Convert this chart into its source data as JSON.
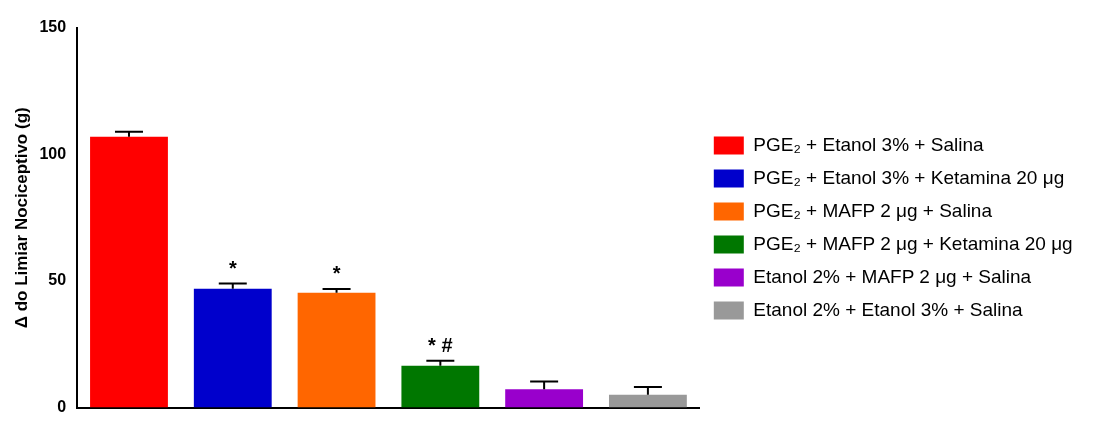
{
  "chart_data": {
    "type": "bar",
    "ylabel": "Δ do Limiar Nociceptivo (g)",
    "categories": [
      null,
      null,
      null,
      null,
      null,
      null
    ],
    "ylim": [
      0,
      150
    ],
    "yticks": [
      0,
      50,
      100,
      150
    ],
    "grid": false,
    "legend": "right",
    "series": [
      {
        "name": "PGE₂ + Etanol 3% + Salina",
        "color": "#ff0000",
        "values": [
          107,
          null,
          null,
          null,
          null,
          null
        ],
        "errors": [
          2,
          null,
          null,
          null,
          null,
          null
        ]
      },
      {
        "name": "PGE₂ + Etanol 3% + Ketamina 20 μg",
        "color": "#0000cc",
        "values": [
          null,
          47,
          null,
          null,
          null,
          null
        ],
        "errors": [
          null,
          2,
          null,
          null,
          null,
          null
        ],
        "value_labels": [
          null,
          "*",
          null,
          null,
          null,
          null
        ]
      },
      {
        "name": "PGE₂ + MAFP 2 μg + Salina",
        "color": "#ff6600",
        "values": [
          null,
          null,
          45.4,
          null,
          null,
          null
        ],
        "errors": [
          null,
          null,
          1.5,
          null,
          null,
          null
        ],
        "value_labels": [
          null,
          null,
          "*",
          null,
          null,
          null
        ]
      },
      {
        "name": "PGE₂ + MAFP 2 μg + Ketamina 20 μg",
        "color": "#007700",
        "values": [
          null,
          null,
          null,
          16.5,
          null,
          null
        ],
        "errors": [
          null,
          null,
          null,
          2,
          null,
          null
        ],
        "value_labels": [
          null,
          null,
          null,
          "* #",
          null,
          null
        ]
      },
      {
        "name": "Etanol 2% + MAFP 2 μg + Salina",
        "color": "#9900cc",
        "values": [
          null,
          null,
          null,
          null,
          7.3,
          null
        ],
        "errors": [
          null,
          null,
          null,
          null,
          3,
          null
        ]
      },
      {
        "name": "Etanol 2% + Etanol 3% + Salina",
        "color": "#999999",
        "values": [
          null,
          null,
          null,
          null,
          null,
          5.1
        ],
        "errors": [
          null,
          null,
          null,
          null,
          null,
          3
        ]
      }
    ]
  }
}
